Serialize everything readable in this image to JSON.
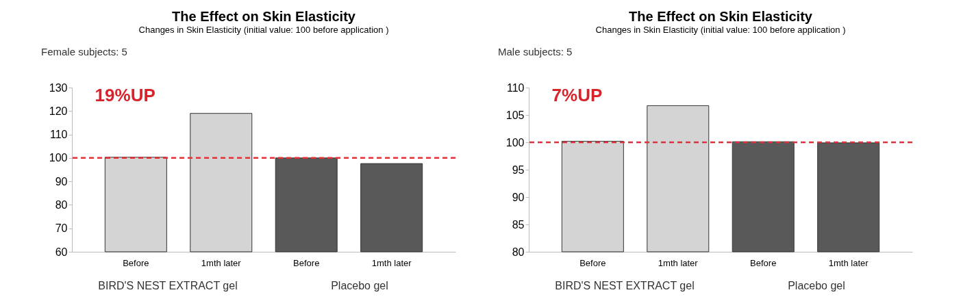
{
  "chart_data": [
    {
      "type": "bar",
      "title": "The Effect on Skin Elasticity",
      "subtitle": "Changes in Skin Elasticity (initial value: 100 before application )",
      "categories": [
        "Before",
        "1mth later",
        "Before",
        "1mth later"
      ],
      "values": [
        100.3,
        119,
        100,
        97.6
      ],
      "colors": [
        "#d4d4d4",
        "#d4d4d4",
        "#595959",
        "#595959"
      ],
      "ylim": [
        60,
        130
      ],
      "yticks": [
        60,
        70,
        80,
        90,
        100,
        110,
        120,
        130
      ],
      "ref_lines": [
        {
          "axis": "y",
          "value": 100,
          "color": "#e0313a",
          "line_style": "dashed"
        }
      ],
      "annotations": [
        "Female subjects: 5",
        "19%UP",
        "BIRD'S NEST EXTRACT gel",
        "Placebo gel"
      ],
      "grid": false
    },
    {
      "type": "bar",
      "title": "The Effect on Skin Elasticity",
      "subtitle": "Changes in Skin Elasticity (initial value: 100 before application )",
      "categories": [
        "Before",
        "1mth later",
        "Before",
        "1mth later"
      ],
      "values": [
        100.2,
        106.7,
        100.1,
        99.9
      ],
      "colors": [
        "#d4d4d4",
        "#d4d4d4",
        "#595959",
        "#595959"
      ],
      "ylim": [
        80,
        110
      ],
      "yticks": [
        80,
        85,
        90,
        95,
        100,
        105,
        110
      ],
      "ref_lines": [
        {
          "axis": "y",
          "value": 100,
          "color": "#e0313a",
          "line_style": "dashed"
        }
      ],
      "annotations": [
        "Male subjects: 5",
        "7%UP",
        "BIRD'S NEST EXTRACT gel",
        "Placebo gel"
      ],
      "grid": false
    }
  ]
}
